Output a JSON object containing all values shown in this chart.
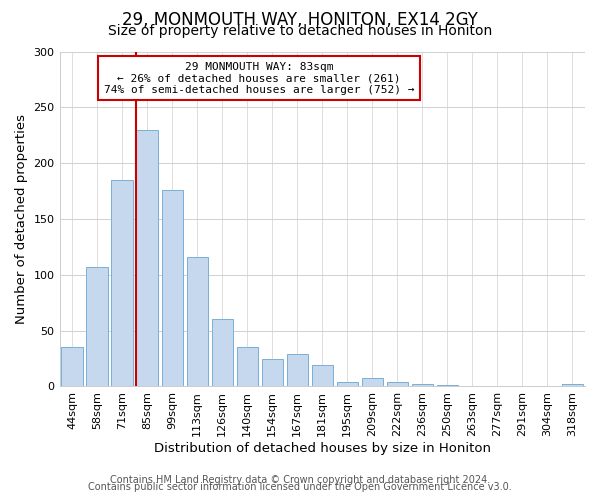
{
  "title": "29, MONMOUTH WAY, HONITON, EX14 2GY",
  "subtitle": "Size of property relative to detached houses in Honiton",
  "xlabel": "Distribution of detached houses by size in Honiton",
  "ylabel": "Number of detached properties",
  "bar_labels": [
    "44sqm",
    "58sqm",
    "71sqm",
    "85sqm",
    "99sqm",
    "113sqm",
    "126sqm",
    "140sqm",
    "154sqm",
    "167sqm",
    "181sqm",
    "195sqm",
    "209sqm",
    "222sqm",
    "236sqm",
    "250sqm",
    "263sqm",
    "277sqm",
    "291sqm",
    "304sqm",
    "318sqm"
  ],
  "bar_values": [
    35,
    107,
    185,
    230,
    176,
    116,
    60,
    35,
    25,
    29,
    19,
    4,
    8,
    4,
    2,
    1,
    0,
    0,
    0,
    0,
    2
  ],
  "bar_color": "#c5d8ed",
  "bar_edge_color": "#7aafd4",
  "vline_x_index": 3,
  "vline_color": "#cc0000",
  "annotation_title": "29 MONMOUTH WAY: 83sqm",
  "annotation_line1": "← 26% of detached houses are smaller (261)",
  "annotation_line2": "74% of semi-detached houses are larger (752) →",
  "annotation_box_color": "white",
  "annotation_box_edge": "#cc0000",
  "ylim": [
    0,
    300
  ],
  "yticks": [
    0,
    50,
    100,
    150,
    200,
    250,
    300
  ],
  "footnote1": "Contains HM Land Registry data © Crown copyright and database right 2024.",
  "footnote2": "Contains public sector information licensed under the Open Government Licence v3.0.",
  "bg_color": "#ffffff",
  "grid_color": "#d0d0d0",
  "title_fontsize": 12,
  "subtitle_fontsize": 10,
  "axis_label_fontsize": 9.5,
  "tick_fontsize": 8,
  "annotation_fontsize": 8,
  "footnote_fontsize": 7
}
